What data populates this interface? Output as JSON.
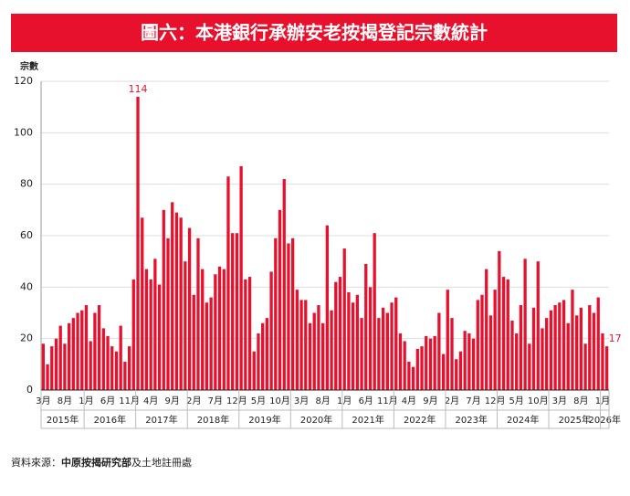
{
  "chart_data": {
    "type": "bar",
    "title": "圖六：本港銀行承辦安老按揭登記宗數統計",
    "y_label": "宗數",
    "categories": [
      "3月",
      null,
      null,
      null,
      null,
      "8月",
      null,
      null,
      null,
      null,
      "1月",
      null,
      null,
      null,
      null,
      "6月",
      null,
      null,
      null,
      null,
      "11月",
      null,
      null,
      null,
      null,
      "4月",
      null,
      null,
      null,
      null,
      "9月",
      null,
      null,
      null,
      null,
      "2月",
      null,
      null,
      null,
      null,
      "7月",
      null,
      null,
      null,
      null,
      "12月",
      null,
      null,
      null,
      null,
      "5月",
      null,
      null,
      null,
      null,
      "10月",
      null,
      null,
      null,
      null,
      "3月",
      null,
      null,
      null,
      null,
      "8月",
      null,
      null,
      null,
      null,
      "1月",
      null,
      null,
      null,
      null,
      "6月",
      null,
      null,
      null,
      null,
      "11月",
      null,
      null,
      null,
      null,
      "4月",
      null,
      null,
      null,
      null,
      "9月",
      null,
      null,
      null,
      null,
      "2月",
      null,
      null,
      null,
      null,
      "7月",
      null,
      null,
      null,
      null,
      "12月",
      null,
      null,
      null,
      null,
      "5月",
      null,
      null,
      null,
      null,
      "10月",
      null,
      null,
      null,
      null,
      "3月",
      null,
      null,
      null,
      null,
      "8月",
      null,
      null,
      null,
      null,
      "1月",
      null
    ],
    "years": [
      "2015年",
      "2016年",
      "2017年",
      "2018年",
      "2019年",
      "2020年",
      "2021年",
      "2022年",
      "2023年",
      "2024年",
      "2025年",
      "2026年"
    ],
    "values": [
      18,
      10,
      17,
      20,
      25,
      18,
      26,
      28,
      30,
      31,
      33,
      19,
      30,
      33,
      24,
      21,
      17,
      15,
      25,
      11,
      17,
      43,
      114,
      67,
      47,
      43,
      51,
      41,
      70,
      59,
      73,
      69,
      67,
      50,
      63,
      37,
      59,
      47,
      34,
      36,
      45,
      48,
      47,
      83,
      61,
      61,
      87,
      43,
      44,
      15,
      22,
      26,
      28,
      46,
      59,
      70,
      82,
      57,
      59,
      39,
      35,
      35,
      26,
      30,
      33,
      26,
      64,
      31,
      42,
      44,
      55,
      38,
      34,
      37,
      28,
      49,
      40,
      61,
      28,
      32,
      30,
      34,
      36,
      22,
      19,
      11,
      9,
      16,
      17,
      21,
      20,
      21,
      30,
      14,
      39,
      28,
      12,
      15,
      23,
      22,
      20,
      35,
      37,
      47,
      29,
      39,
      54,
      44,
      43,
      27,
      22,
      33,
      51,
      18,
      32,
      50,
      24,
      28,
      31,
      33,
      34,
      35,
      26,
      39,
      29,
      32,
      18,
      33,
      30,
      36,
      22,
      17
    ],
    "color": "#e8112d",
    "label_color": "#e8112d",
    "ylim": [
      0,
      120
    ],
    "yticks": [
      0,
      20,
      40,
      60,
      80,
      100,
      120
    ],
    "grid": true,
    "source": {
      "prefix": "資料來源：",
      "bold": "中原按揭研究部",
      "rest": "及土地註冊處"
    }
  }
}
